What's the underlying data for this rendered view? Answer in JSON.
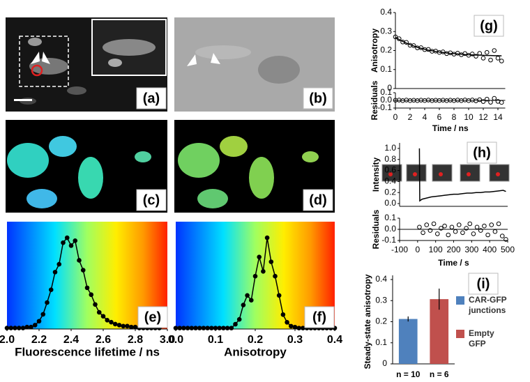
{
  "images": [
    {
      "panel": "(a)"
    },
    {
      "panel": "(b)"
    },
    {
      "panel": "(c)"
    },
    {
      "panel": "(d)"
    }
  ],
  "chart_data": [
    {
      "type": "line",
      "panel": "(e)",
      "xlabel": "Fluorescence lifetime / ns",
      "xlim": [
        2.0,
        3.0
      ],
      "xticks": [
        {
          "value": 2.0,
          "label": "2.0"
        },
        2.2,
        2.4,
        2.6,
        2.8,
        {
          "value": 3.0,
          "label": "3.0"
        }
      ],
      "x": [
        2.0,
        2.025,
        2.05,
        2.075,
        2.1,
        2.125,
        2.15,
        2.175,
        2.2,
        2.225,
        2.25,
        2.275,
        2.3,
        2.325,
        2.35,
        2.375,
        2.4,
        2.425,
        2.45,
        2.475,
        2.5,
        2.525,
        2.55,
        2.575,
        2.6,
        2.625,
        2.65,
        2.675,
        2.7,
        2.725,
        2.75,
        2.775,
        2.8,
        2.825,
        2.85,
        2.875,
        2.9,
        2.925,
        2.95
      ],
      "series": [
        {
          "color": "#000000",
          "mode": "line+markers",
          "marker_fill": "#000000",
          "values": [
            0.01,
            0.01,
            0.01,
            0.01,
            0.01,
            0.02,
            0.02,
            0.04,
            0.08,
            0.15,
            0.27,
            0.4,
            0.58,
            0.66,
            0.88,
            0.93,
            0.85,
            0.9,
            0.7,
            0.6,
            0.42,
            0.35,
            0.25,
            0.17,
            0.13,
            0.09,
            0.07,
            0.05,
            0.04,
            0.03,
            0.03,
            0.02,
            0.02,
            0.01,
            0.01,
            0.01,
            0.01,
            0.01,
            0.01
          ]
        }
      ]
    },
    {
      "type": "line",
      "panel": "(f)",
      "xlabel": "Anisotropy",
      "xlim": [
        0.0,
        0.4
      ],
      "xticks": [
        {
          "value": 0.0,
          "label": "0.0"
        },
        0.1,
        0.2,
        0.3,
        0.4
      ],
      "x": [
        0.0,
        0.01,
        0.02,
        0.03,
        0.04,
        0.05,
        0.06,
        0.07,
        0.08,
        0.09,
        0.1,
        0.11,
        0.12,
        0.13,
        0.14,
        0.15,
        0.16,
        0.17,
        0.18,
        0.19,
        0.2,
        0.21,
        0.22,
        0.23,
        0.24,
        0.25,
        0.26,
        0.27,
        0.28,
        0.29,
        0.3,
        0.31,
        0.32,
        0.33,
        0.34,
        0.35,
        0.36,
        0.37,
        0.38,
        0.39,
        0.4
      ],
      "series": [
        {
          "color": "#000000",
          "mode": "line+markers",
          "marker_fill": "#000000",
          "values": [
            0.01,
            0.01,
            0.01,
            0.01,
            0.01,
            0.01,
            0.01,
            0.01,
            0.01,
            0.01,
            0.01,
            0.01,
            0.01,
            0.01,
            0.01,
            0.05,
            0.1,
            0.25,
            0.35,
            0.3,
            0.55,
            0.75,
            0.6,
            0.95,
            0.7,
            0.55,
            0.35,
            0.15,
            0.07,
            0.03,
            0.02,
            0.01,
            0.01,
            0.01,
            0.01,
            0.01,
            0.01,
            0.01,
            0.01,
            0.01,
            0.01
          ]
        }
      ]
    },
    {
      "type": "scatter",
      "panel": "(g)",
      "ylabel": "Anisotropy",
      "xlim": [
        0,
        15
      ],
      "ylim": [
        0,
        0.4
      ],
      "yticks": [
        0,
        0.1,
        0.2,
        0.3,
        0.4
      ],
      "x": [
        0,
        0.5,
        1,
        1.5,
        2,
        2.5,
        3,
        3.5,
        4,
        4.5,
        5,
        5.5,
        6,
        6.5,
        7,
        7.5,
        8,
        8.5,
        9,
        9.5,
        10,
        10.5,
        11,
        11.5,
        12,
        12.5,
        13,
        13.5,
        14,
        14.5
      ],
      "series": [
        {
          "color": "#000000",
          "mode": "markers",
          "marker_fill": "none",
          "values": [
            0.272,
            0.262,
            0.245,
            0.243,
            0.228,
            0.226,
            0.214,
            0.215,
            0.205,
            0.206,
            0.196,
            0.197,
            0.19,
            0.193,
            0.184,
            0.188,
            0.181,
            0.186,
            0.178,
            0.184,
            0.175,
            0.182,
            0.17,
            0.185,
            0.16,
            0.19,
            0.15,
            0.2,
            0.16,
            0.145
          ]
        },
        {
          "color": "#000000",
          "mode": "line",
          "values": [
            0.27,
            0.258,
            0.248,
            0.239,
            0.231,
            0.224,
            0.217,
            0.212,
            0.207,
            0.202,
            0.199,
            0.195,
            0.192,
            0.19,
            0.187,
            0.185,
            0.184,
            0.182,
            0.181,
            0.179,
            0.178,
            0.177,
            0.176,
            0.176,
            0.175,
            0.174,
            0.174,
            0.173,
            0.173,
            0.172
          ]
        }
      ]
    },
    {
      "type": "scatter",
      "ylabel": "Residuals",
      "xlabel": "Time / ns",
      "xlim": [
        0,
        15
      ],
      "xticks": [
        0,
        2,
        4,
        6,
        8,
        10,
        12,
        14
      ],
      "ylim": [
        -0.1,
        0.1
      ],
      "yticks": [
        -0.1,
        {
          "value": 0,
          "label": "0.0"
        },
        0.1
      ],
      "zero_line": true,
      "x": [
        0,
        0.5,
        1,
        1.5,
        2,
        2.5,
        3,
        3.5,
        4,
        4.5,
        5,
        5.5,
        6,
        6.5,
        7,
        7.5,
        8,
        8.5,
        9,
        9.5,
        10,
        10.5,
        11,
        11.5,
        12,
        12.5,
        13,
        13.5,
        14,
        14.5
      ],
      "series": [
        {
          "color": "#000000",
          "mode": "markers",
          "marker_fill": "none",
          "values": [
            0.002,
            0.004,
            -0.003,
            0.004,
            -0.003,
            0.002,
            -0.003,
            0.003,
            -0.002,
            0.004,
            -0.003,
            0.002,
            -0.002,
            0.003,
            -0.003,
            0.003,
            -0.003,
            0.004,
            -0.003,
            0.005,
            -0.003,
            0.005,
            -0.006,
            0.009,
            -0.015,
            0.016,
            -0.024,
            0.027,
            -0.013,
            -0.027
          ]
        }
      ]
    },
    {
      "type": "line",
      "panel": "(h)",
      "ylabel": "Intensity",
      "xlim": [
        -100,
        500
      ],
      "ylim": [
        -0.05,
        1.1
      ],
      "yticks": [
        {
          "value": 0,
          "label": "0.0"
        },
        0.2,
        0.4,
        0.6,
        0.8,
        {
          "value": 1,
          "label": "1.0"
        }
      ],
      "x": [
        10,
        12,
        25,
        50,
        75,
        100,
        125,
        150,
        175,
        200,
        225,
        250,
        275,
        300,
        325,
        350,
        375,
        400,
        425,
        450,
        475,
        490
      ],
      "series": [
        {
          "color": "#000000",
          "mode": "line",
          "values": [
            1.0,
            0.05,
            0.08,
            0.1,
            0.12,
            0.13,
            0.14,
            0.15,
            0.16,
            0.17,
            0.17,
            0.18,
            0.19,
            0.19,
            0.2,
            0.2,
            0.21,
            0.21,
            0.22,
            0.23,
            0.24,
            0.22
          ]
        }
      ]
    },
    {
      "type": "scatter",
      "ylabel": "Residuals",
      "xlabel": "Time / s",
      "xlim": [
        -100,
        500
      ],
      "xticks": [
        -100,
        0,
        100,
        200,
        300,
        400,
        500
      ],
      "ylim": [
        -0.1,
        0.1
      ],
      "yticks": [
        -0.1,
        {
          "value": 0,
          "label": "0.0"
        },
        0.1
      ],
      "zero_line": true,
      "x": [
        10,
        30,
        50,
        70,
        90,
        110,
        130,
        150,
        170,
        190,
        210,
        230,
        250,
        270,
        290,
        310,
        330,
        350,
        370,
        390,
        410,
        430,
        450,
        470,
        490
      ],
      "series": [
        {
          "color": "#000000",
          "mode": "markers",
          "marker_fill": "none",
          "values": [
            0.02,
            -0.03,
            0.04,
            -0.01,
            0.05,
            -0.04,
            0.01,
            0.03,
            -0.05,
            0.02,
            -0.02,
            0.04,
            -0.03,
            0.01,
            0.05,
            -0.04,
            0.02,
            -0.01,
            0.03,
            -0.05,
            0.04,
            -0.02,
            0.05,
            -0.06,
            -0.09
          ]
        }
      ]
    },
    {
      "type": "bar",
      "panel": "(i)",
      "ylabel": "Steady-state anisotropy",
      "categories": [
        "n = 10",
        "n = 6"
      ],
      "ylim": [
        0,
        0.4
      ],
      "yticks": [
        0,
        0.1,
        0.2,
        0.3,
        0.4
      ],
      "series": [
        {
          "name": "CAR-GFP junctions",
          "color": "#4f81bd",
          "values": [
            0.213,
            null
          ],
          "errors": [
            0.012,
            null
          ]
        },
        {
          "name": "Empty GFP",
          "color": "#c0504d",
          "values": [
            null,
            0.307
          ],
          "errors": [
            null,
            0.05
          ]
        }
      ]
    }
  ]
}
